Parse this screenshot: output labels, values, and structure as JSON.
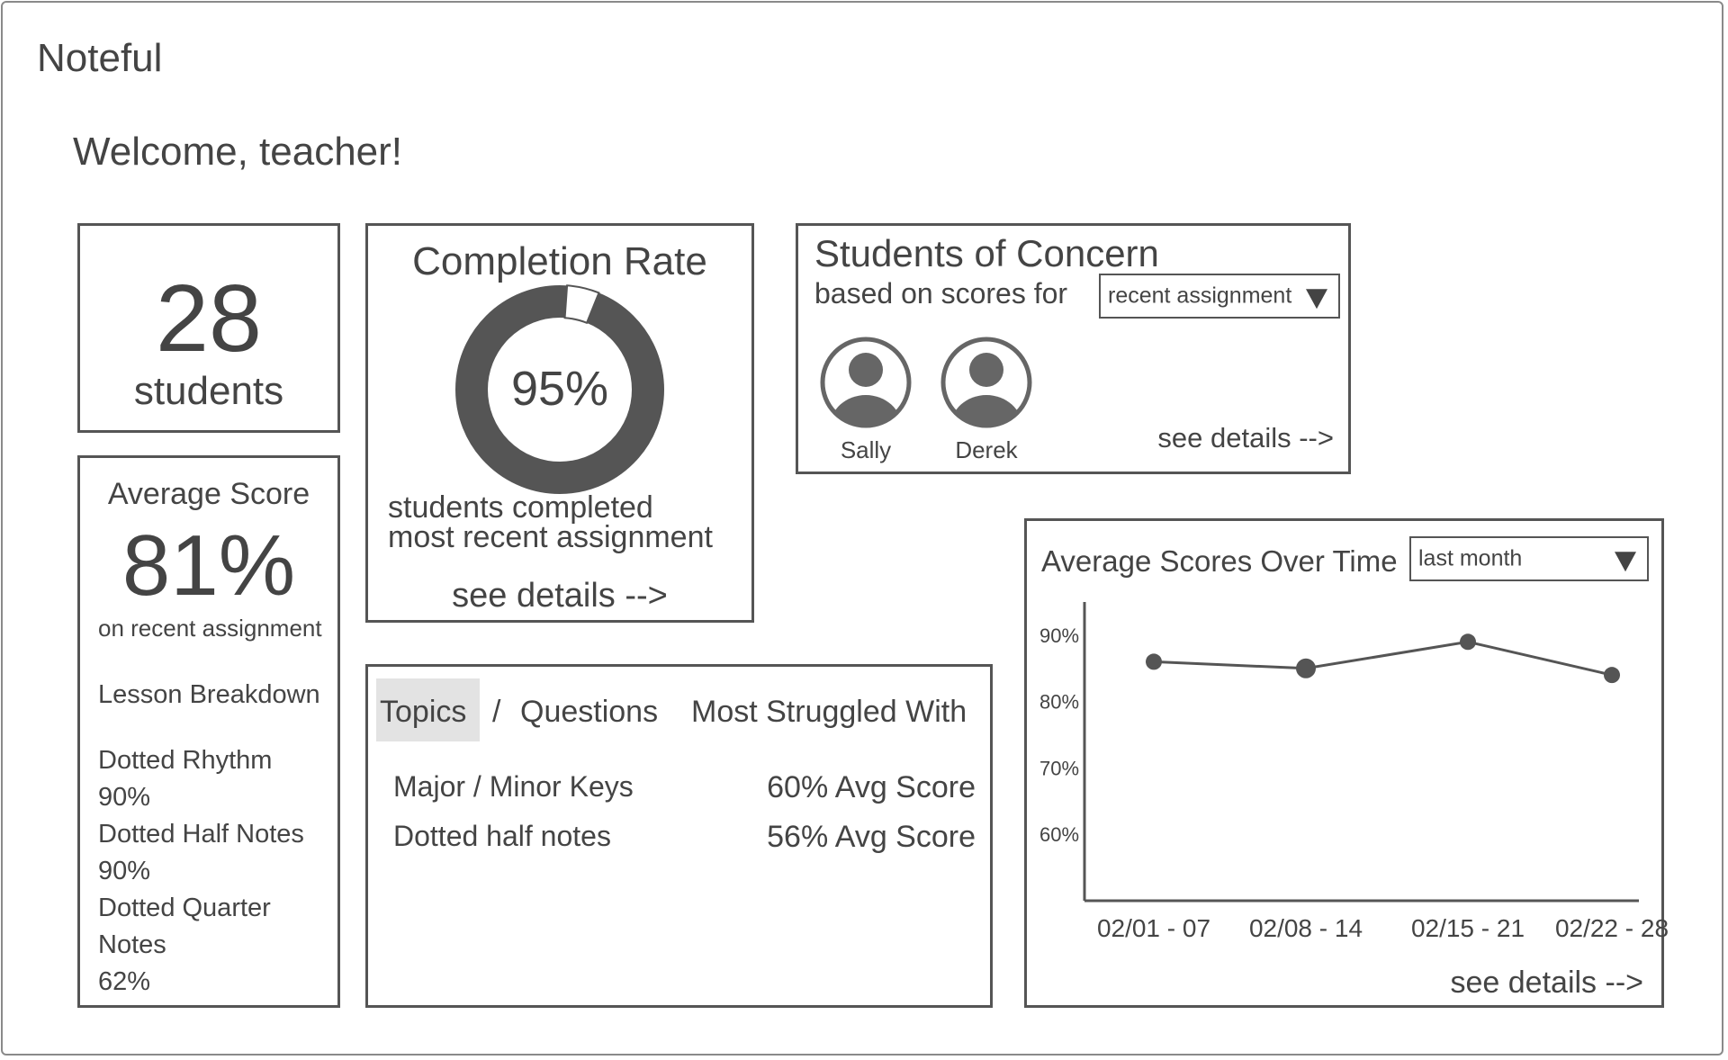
{
  "app": {
    "title": "Noteful"
  },
  "welcome": "Welcome, teacher!",
  "students_card": {
    "count": "28",
    "label": "students"
  },
  "average_score": {
    "title": "Average Score",
    "value": "81%",
    "caption": "on recent assignment",
    "breakdown_title": "Lesson Breakdown",
    "lessons": [
      {
        "name": "Dotted Rhythm",
        "score": "90%"
      },
      {
        "name": "Dotted Half Notes",
        "score": "90%"
      },
      {
        "name_line1": "Dotted Quarter",
        "name_line2": "Notes",
        "score": "62%"
      }
    ]
  },
  "completion": {
    "title": "Completion Rate",
    "percent_label": "95%",
    "percent_value": 95,
    "caption_line1": "students completed",
    "caption_line2": "most recent assignment",
    "details_link": "see details -->"
  },
  "concern": {
    "title": "Students of Concern",
    "subtitle": "based on scores for",
    "dropdown_value": "recent assignment",
    "students": [
      "Sally",
      "Derek"
    ],
    "details_link": "see details -->"
  },
  "struggles": {
    "tab_topics": "Topics",
    "separator": "/",
    "tab_questions": "Questions",
    "heading": "Most Struggled With",
    "rows": [
      {
        "topic": "Major / Minor Keys",
        "score": "60% Avg Score"
      },
      {
        "topic": "Dotted half notes",
        "score": "56% Avg Score"
      }
    ]
  },
  "chart_panel": {
    "title": "Average Scores Over Time",
    "dropdown_value": "last month",
    "details_link": "see details -->"
  },
  "chart_data": {
    "type": "line",
    "title": "Average Scores Over Time",
    "categories": [
      "02/01 - 07",
      "02/08 - 14",
      "02/15 - 21",
      "02/22 - 28"
    ],
    "values": [
      86,
      85,
      89,
      84
    ],
    "y_ticks": [
      "90%",
      "80%",
      "70%",
      "60%"
    ],
    "y_tick_values": [
      90,
      80,
      70,
      60
    ],
    "ylim": [
      50,
      95
    ],
    "grid": false,
    "colors": {
      "line": "#555555",
      "marker": "#555555"
    }
  },
  "colors": {
    "border": "#555555",
    "text": "#444444",
    "tab_active_bg": "#e3e3e3"
  }
}
